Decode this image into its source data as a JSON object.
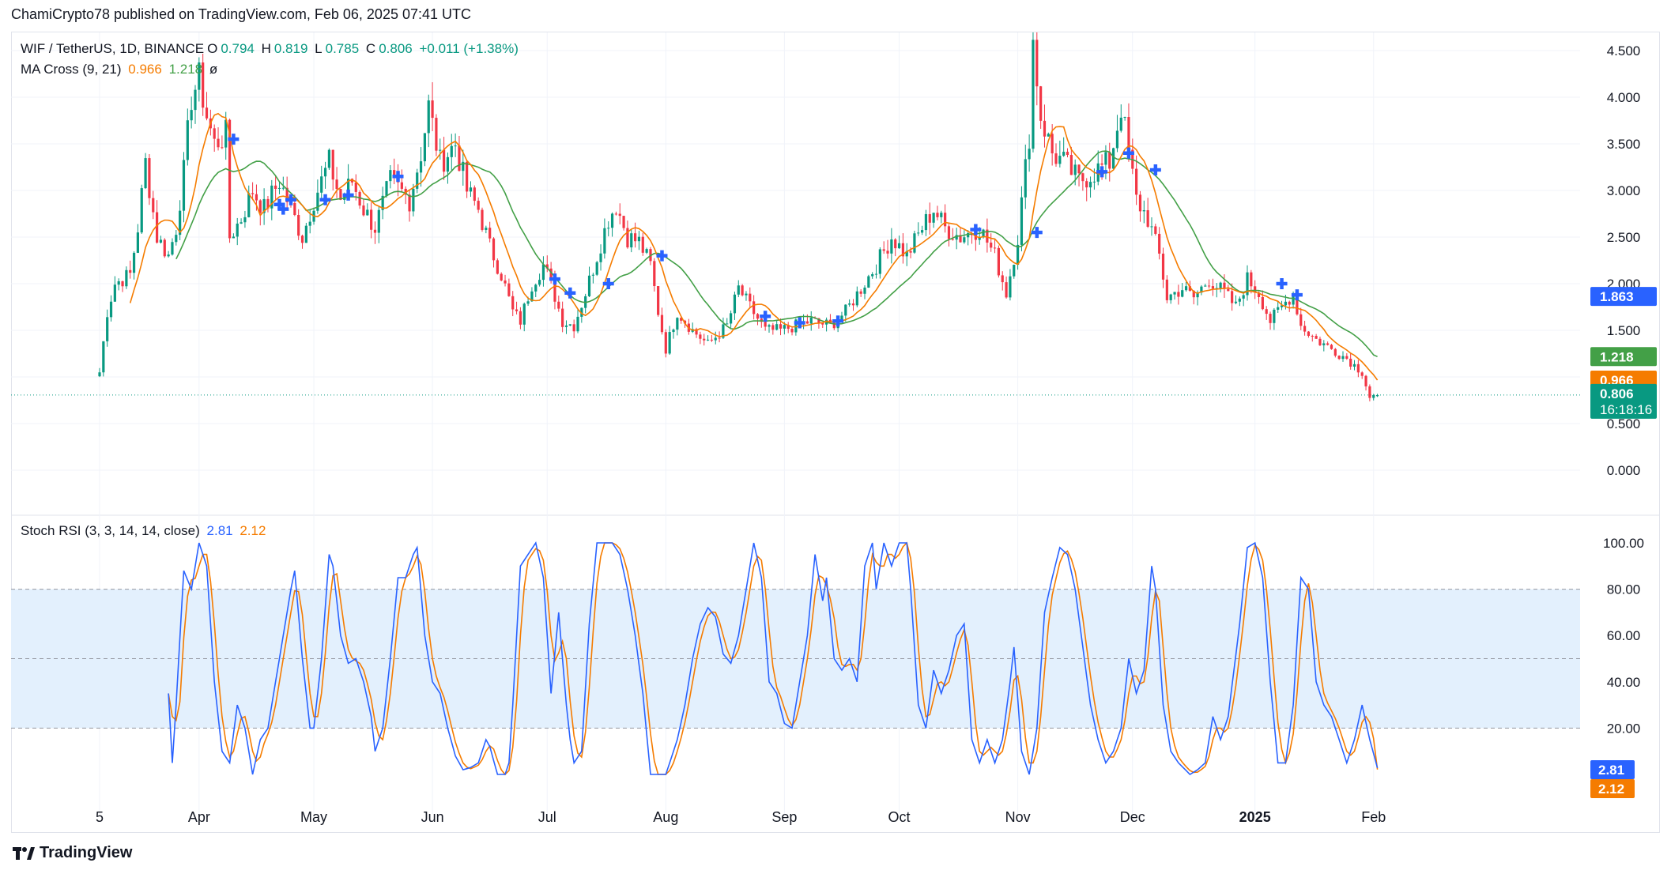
{
  "header": {
    "published": "ChamiCrypto78 published on TradingView.com, Feb 06, 2025 07:41 UTC"
  },
  "legend": {
    "symbol": "WIF / TetherUS, 1D, BINANCE",
    "o_label": "O",
    "o_val": "0.794",
    "h_label": "H",
    "h_val": "0.819",
    "l_label": "L",
    "l_val": "0.785",
    "c_label": "C",
    "c_val": "0.806",
    "change": "+0.011 (+1.38%)",
    "ma_label": "MA Cross (9, 21)",
    "ma_fast": "0.966",
    "ma_slow": "1.218",
    "ma_icon": "ø",
    "stoch_label": "Stoch RSI (3, 3, 14, 14, close)",
    "stoch_k": "2.81",
    "stoch_d": "2.12"
  },
  "footer": {
    "brand": "TradingView"
  },
  "colors": {
    "up": "#089981",
    "down": "#f23645",
    "ma_fast": "#f57c00",
    "ma_slow": "#43a047",
    "k": "#2962ff",
    "d": "#f57c00",
    "band": "#e3f0fd"
  },
  "chart_data": [
    {
      "type": "candlestick",
      "title": "WIF / TetherUS, 1D, BINANCE",
      "ylim": [
        -0.4,
        4.9
      ],
      "y_ticks": [
        "4.500",
        "4.000",
        "3.500",
        "3.000",
        "2.500",
        "2.000",
        "1.500",
        "0.500",
        "0.000"
      ],
      "x_ticks": [
        "5",
        "Apr",
        "May",
        "Jun",
        "Jul",
        "Aug",
        "Sep",
        "Oct",
        "Nov",
        "Dec",
        "2025",
        "Feb"
      ],
      "x_tick_days": [
        0,
        26,
        56,
        87,
        117,
        148,
        179,
        209,
        240,
        270,
        302,
        333
      ],
      "last": {
        "open": 0.794,
        "high": 0.819,
        "low": 0.785,
        "close": 0.806
      },
      "price_labels": [
        {
          "value": 1.863,
          "text": "1.863",
          "color": "#2962ff"
        },
        {
          "value": 1.218,
          "text": "1.218",
          "color": "#43a047"
        },
        {
          "value": 0.966,
          "text": "0.966",
          "color": "#f57c00"
        },
        {
          "value": 0.806,
          "text": "0.806",
          "sub": "16:18:16",
          "color": "#089981"
        }
      ],
      "close_anchors": [
        [
          0,
          1.05
        ],
        [
          2,
          1.7
        ],
        [
          4,
          2.0
        ],
        [
          8,
          2.1
        ],
        [
          10,
          2.6
        ],
        [
          12,
          3.3
        ],
        [
          15,
          2.5
        ],
        [
          18,
          2.3
        ],
        [
          20,
          2.6
        ],
        [
          22,
          3.2
        ],
        [
          24,
          4.0
        ],
        [
          26,
          4.2
        ],
        [
          28,
          3.8
        ],
        [
          30,
          3.5
        ],
        [
          33,
          3.6
        ],
        [
          34,
          2.5
        ],
        [
          37,
          2.7
        ],
        [
          40,
          3.0
        ],
        [
          43,
          2.8
        ],
        [
          47,
          3.1
        ],
        [
          50,
          2.8
        ],
        [
          53,
          2.5
        ],
        [
          56,
          2.9
        ],
        [
          60,
          3.3
        ],
        [
          63,
          2.9
        ],
        [
          66,
          3.1
        ],
        [
          69,
          2.8
        ],
        [
          72,
          2.6
        ],
        [
          76,
          3.1
        ],
        [
          81,
          2.9
        ],
        [
          84,
          3.4
        ],
        [
          86,
          3.9
        ],
        [
          89,
          3.3
        ],
        [
          93,
          3.5
        ],
        [
          96,
          3.0
        ],
        [
          99,
          2.8
        ],
        [
          102,
          2.4
        ],
        [
          105,
          2.1
        ],
        [
          108,
          1.7
        ],
        [
          110,
          1.6
        ],
        [
          113,
          2.0
        ],
        [
          116,
          2.2
        ],
        [
          118,
          2.0
        ],
        [
          121,
          1.6
        ],
        [
          124,
          1.55
        ],
        [
          127,
          1.9
        ],
        [
          130,
          2.3
        ],
        [
          133,
          2.7
        ],
        [
          135,
          2.85
        ],
        [
          138,
          2.5
        ],
        [
          141,
          2.45
        ],
        [
          144,
          2.2
        ],
        [
          146,
          1.7
        ],
        [
          148,
          1.3
        ],
        [
          151,
          1.7
        ],
        [
          155,
          1.5
        ],
        [
          159,
          1.35
        ],
        [
          164,
          1.55
        ],
        [
          167,
          1.95
        ],
        [
          170,
          1.75
        ],
        [
          174,
          1.5
        ],
        [
          178,
          1.5
        ],
        [
          182,
          1.55
        ],
        [
          186,
          1.6
        ],
        [
          191,
          1.55
        ],
        [
          195,
          1.7
        ],
        [
          199,
          1.95
        ],
        [
          203,
          2.2
        ],
        [
          207,
          2.5
        ],
        [
          211,
          2.3
        ],
        [
          215,
          2.6
        ],
        [
          218,
          2.8
        ],
        [
          221,
          2.6
        ],
        [
          225,
          2.5
        ],
        [
          230,
          2.6
        ],
        [
          234,
          2.3
        ],
        [
          237,
          1.9
        ],
        [
          240,
          2.5
        ],
        [
          243,
          3.6
        ],
        [
          244,
          4.6
        ],
        [
          246,
          3.8
        ],
        [
          249,
          3.4
        ],
        [
          252,
          3.3
        ],
        [
          256,
          3.1
        ],
        [
          260,
          3.2
        ],
        [
          264,
          3.3
        ],
        [
          267,
          3.9
        ],
        [
          269,
          3.4
        ],
        [
          271,
          2.9
        ],
        [
          274,
          2.7
        ],
        [
          277,
          2.3
        ],
        [
          279,
          1.85
        ],
        [
          283,
          1.95
        ],
        [
          286,
          1.85
        ],
        [
          290,
          2.05
        ],
        [
          294,
          1.9
        ],
        [
          297,
          1.75
        ],
        [
          300,
          2.05
        ],
        [
          303,
          1.9
        ],
        [
          306,
          1.6
        ],
        [
          309,
          1.75
        ],
        [
          312,
          1.9
        ],
        [
          314,
          1.55
        ],
        [
          318,
          1.4
        ],
        [
          322,
          1.3
        ],
        [
          326,
          1.2
        ],
        [
          330,
          1.05
        ],
        [
          332,
          0.78
        ],
        [
          334,
          0.806
        ]
      ]
    },
    {
      "type": "line",
      "title": "Stoch RSI (3, 3, 14, 14, close)",
      "ylim": [
        -10,
        105
      ],
      "y_ticks": [
        "100.00",
        "80.00",
        "60.00",
        "40.00",
        "20.00"
      ],
      "band": [
        20,
        80
      ],
      "midline": 50,
      "series": [
        {
          "name": "K",
          "last": 2.81
        },
        {
          "name": "D",
          "last": 2.12
        }
      ],
      "k_anchors": [
        [
          18,
          35
        ],
        [
          19,
          5
        ],
        [
          20,
          30
        ],
        [
          22,
          88
        ],
        [
          24,
          80
        ],
        [
          26,
          100
        ],
        [
          28,
          90
        ],
        [
          30,
          40
        ],
        [
          32,
          10
        ],
        [
          34,
          5
        ],
        [
          36,
          30
        ],
        [
          38,
          20
        ],
        [
          40,
          0
        ],
        [
          42,
          15
        ],
        [
          44,
          20
        ],
        [
          46,
          40
        ],
        [
          48,
          60
        ],
        [
          50,
          80
        ],
        [
          51,
          88
        ],
        [
          53,
          50
        ],
        [
          55,
          20
        ],
        [
          56,
          20
        ],
        [
          58,
          50
        ],
        [
          60,
          95
        ],
        [
          61,
          90
        ],
        [
          63,
          60
        ],
        [
          65,
          48
        ],
        [
          67,
          50
        ],
        [
          69,
          40
        ],
        [
          71,
          25
        ],
        [
          72,
          10
        ],
        [
          74,
          20
        ],
        [
          76,
          50
        ],
        [
          78,
          85
        ],
        [
          80,
          85
        ],
        [
          82,
          95
        ],
        [
          83,
          98
        ],
        [
          85,
          60
        ],
        [
          87,
          40
        ],
        [
          89,
          35
        ],
        [
          91,
          20
        ],
        [
          93,
          8
        ],
        [
          95,
          2
        ],
        [
          97,
          3
        ],
        [
          99,
          5
        ],
        [
          101,
          15
        ],
        [
          102,
          12
        ],
        [
          104,
          0
        ],
        [
          106,
          0
        ],
        [
          107,
          5
        ],
        [
          108,
          30
        ],
        [
          110,
          90
        ],
        [
          112,
          95
        ],
        [
          114,
          100
        ],
        [
          116,
          85
        ],
        [
          118,
          35
        ],
        [
          120,
          70
        ],
        [
          121,
          50
        ],
        [
          122,
          30
        ],
        [
          123,
          15
        ],
        [
          124,
          5
        ],
        [
          126,
          10
        ],
        [
          128,
          65
        ],
        [
          130,
          100
        ],
        [
          132,
          100
        ],
        [
          134,
          100
        ],
        [
          136,
          95
        ],
        [
          138,
          80
        ],
        [
          140,
          60
        ],
        [
          142,
          35
        ],
        [
          144,
          0
        ],
        [
          146,
          0
        ],
        [
          148,
          0
        ],
        [
          149,
          5
        ],
        [
          151,
          15
        ],
        [
          153,
          30
        ],
        [
          155,
          50
        ],
        [
          157,
          65
        ],
        [
          159,
          72
        ],
        [
          161,
          68
        ],
        [
          163,
          52
        ],
        [
          165,
          48
        ],
        [
          167,
          60
        ],
        [
          169,
          80
        ],
        [
          171,
          100
        ],
        [
          173,
          85
        ],
        [
          175,
          40
        ],
        [
          177,
          35
        ],
        [
          179,
          22
        ],
        [
          181,
          20
        ],
        [
          183,
          40
        ],
        [
          185,
          60
        ],
        [
          187,
          95
        ],
        [
          189,
          75
        ],
        [
          190,
          85
        ],
        [
          192,
          50
        ],
        [
          194,
          45
        ],
        [
          196,
          50
        ],
        [
          198,
          40
        ],
        [
          200,
          90
        ],
        [
          202,
          100
        ],
        [
          203,
          80
        ],
        [
          205,
          100
        ],
        [
          207,
          90
        ],
        [
          209,
          100
        ],
        [
          211,
          100
        ],
        [
          212,
          80
        ],
        [
          214,
          30
        ],
        [
          216,
          20
        ],
        [
          218,
          45
        ],
        [
          220,
          35
        ],
        [
          222,
          45
        ],
        [
          224,
          60
        ],
        [
          226,
          65
        ],
        [
          228,
          15
        ],
        [
          230,
          5
        ],
        [
          232,
          15
        ],
        [
          234,
          5
        ],
        [
          236,
          15
        ],
        [
          238,
          40
        ],
        [
          239,
          55
        ],
        [
          241,
          10
        ],
        [
          243,
          0
        ],
        [
          245,
          20
        ],
        [
          247,
          70
        ],
        [
          249,
          85
        ],
        [
          251,
          98
        ],
        [
          253,
          95
        ],
        [
          255,
          80
        ],
        [
          257,
          55
        ],
        [
          259,
          30
        ],
        [
          261,
          15
        ],
        [
          263,
          5
        ],
        [
          265,
          10
        ],
        [
          267,
          20
        ],
        [
          269,
          50
        ],
        [
          271,
          35
        ],
        [
          273,
          45
        ],
        [
          275,
          90
        ],
        [
          276,
          80
        ],
        [
          278,
          30
        ],
        [
          280,
          10
        ],
        [
          282,
          5
        ],
        [
          285,
          0
        ],
        [
          287,
          2
        ],
        [
          289,
          5
        ],
        [
          291,
          25
        ],
        [
          293,
          15
        ],
        [
          295,
          25
        ],
        [
          298,
          65
        ],
        [
          300,
          98
        ],
        [
          302,
          100
        ],
        [
          304,
          85
        ],
        [
          306,
          40
        ],
        [
          308,
          5
        ],
        [
          310,
          5
        ],
        [
          312,
          30
        ],
        [
          314,
          85
        ],
        [
          316,
          80
        ],
        [
          318,
          40
        ],
        [
          320,
          30
        ],
        [
          322,
          25
        ],
        [
          324,
          15
        ],
        [
          326,
          5
        ],
        [
          328,
          15
        ],
        [
          330,
          30
        ],
        [
          332,
          15
        ],
        [
          334,
          3
        ]
      ]
    }
  ],
  "ma_cross_points": [
    {
      "day": 35,
      "price": 3.55
    },
    {
      "day": 47,
      "price": 2.85
    },
    {
      "day": 48,
      "price": 2.8
    },
    {
      "day": 50,
      "price": 2.9
    },
    {
      "day": 59,
      "price": 2.9
    },
    {
      "day": 65,
      "price": 2.95
    },
    {
      "day": 78,
      "price": 3.15
    },
    {
      "day": 119,
      "price": 2.05
    },
    {
      "day": 123,
      "price": 1.9
    },
    {
      "day": 133,
      "price": 2.0
    },
    {
      "day": 147,
      "price": 2.3
    },
    {
      "day": 174,
      "price": 1.65
    },
    {
      "day": 183,
      "price": 1.58
    },
    {
      "day": 193,
      "price": 1.6
    },
    {
      "day": 229,
      "price": 2.58
    },
    {
      "day": 245,
      "price": 2.55
    },
    {
      "day": 262,
      "price": 3.2
    },
    {
      "day": 269,
      "price": 3.4
    },
    {
      "day": 276,
      "price": 3.22
    },
    {
      "day": 309,
      "price": 2.0
    },
    {
      "day": 313,
      "price": 1.88
    }
  ]
}
